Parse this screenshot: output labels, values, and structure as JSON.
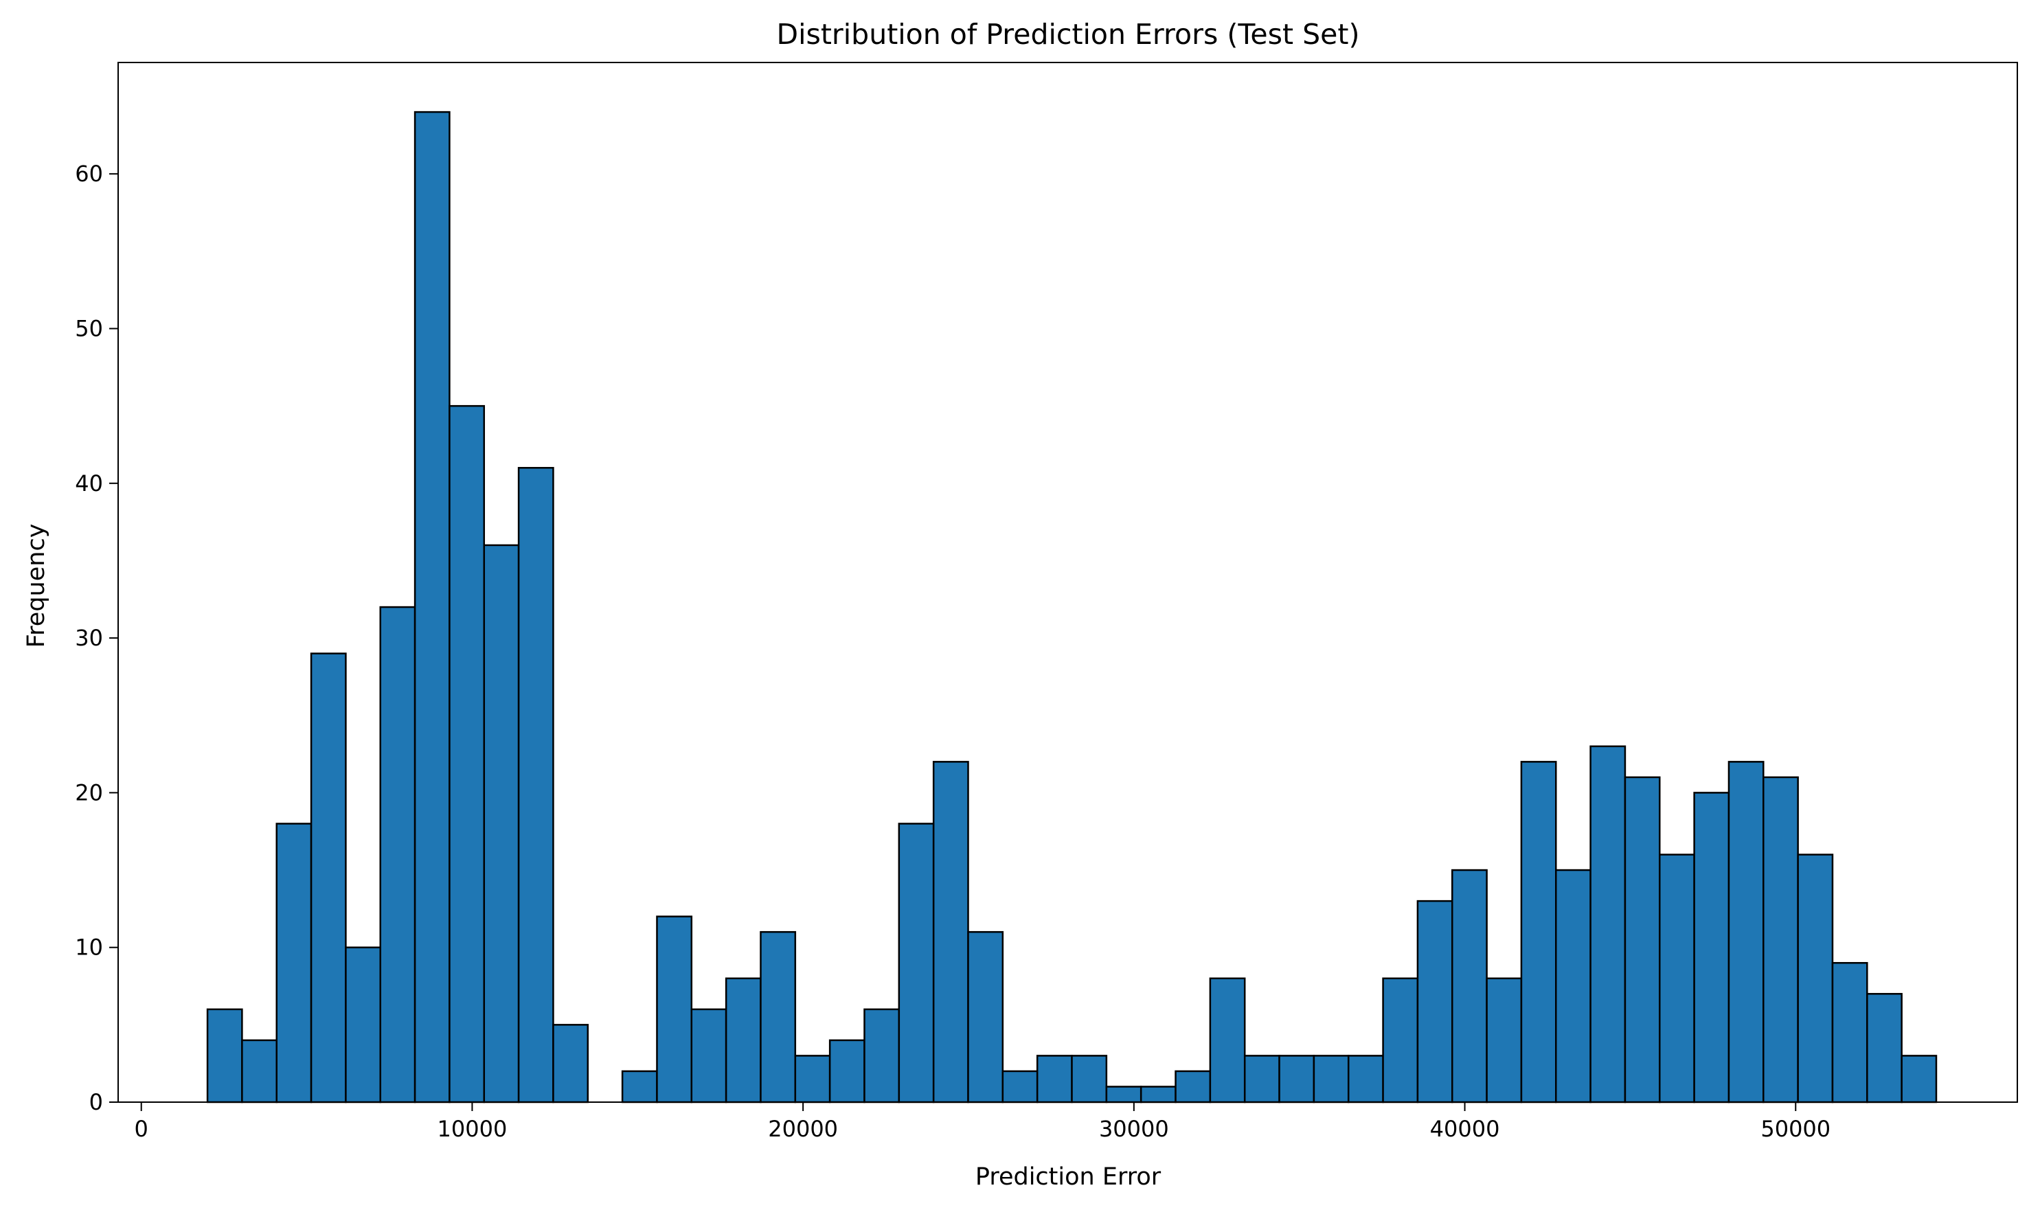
{
  "chart_data": {
    "type": "bar",
    "title": "Distribution of Prediction Errors (Test Set)",
    "xlabel": "Prediction Error",
    "ylabel": "Frequency",
    "xlim": [
      -700,
      56700
    ],
    "ylim": [
      0,
      67.2
    ],
    "xticks": [
      0,
      10000,
      20000,
      30000,
      40000,
      50000
    ],
    "yticks": [
      0,
      10,
      20,
      30,
      40,
      50,
      60
    ],
    "grid": false,
    "bar_color": "#1f77b4",
    "edge_color": "#000000",
    "bin_start": 2000,
    "bin_width": 1045,
    "counts": [
      6,
      4,
      18,
      29,
      10,
      32,
      64,
      45,
      36,
      41,
      5,
      0,
      2,
      12,
      6,
      8,
      11,
      3,
      4,
      6,
      18,
      22,
      11,
      2,
      3,
      3,
      1,
      1,
      2,
      8,
      3,
      3,
      3,
      3,
      8,
      13,
      15,
      8,
      22,
      15,
      23,
      21,
      16,
      20,
      22,
      21,
      16,
      9,
      7,
      3
    ]
  }
}
